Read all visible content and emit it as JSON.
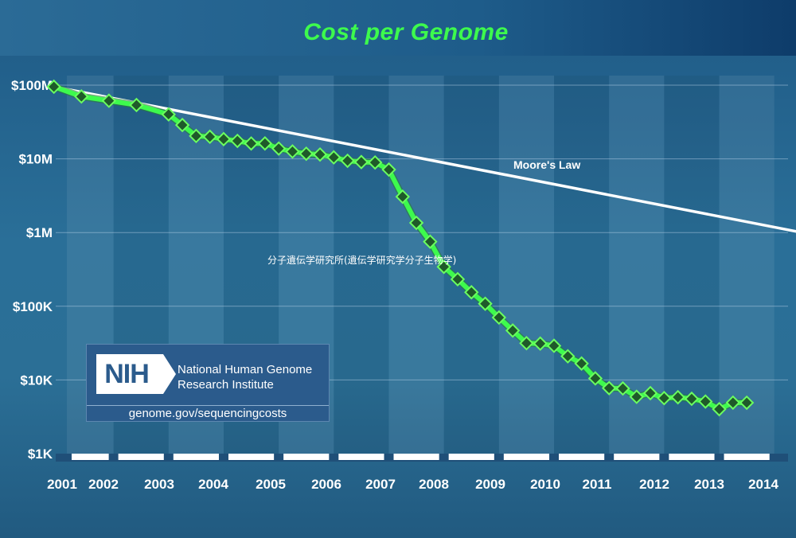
{
  "chart_data": {
    "type": "line",
    "title": "Cost per Genome",
    "xlabel": "",
    "ylabel": "",
    "x_ticks": [
      "2001",
      "2002",
      "2003",
      "2004",
      "2005",
      "2006",
      "2007",
      "2008",
      "2009",
      "2010",
      "2011",
      "2012",
      "2013",
      "2014"
    ],
    "y_ticks": [
      "$100M",
      "$10M",
      "$1M",
      "$100K",
      "$10K",
      "$1K"
    ],
    "y_scale": "log",
    "ylim": [
      1000,
      100000000
    ],
    "xlim": [
      2001.7,
      2015.0
    ],
    "grid": true,
    "annotations": [
      {
        "text": "Moore's Law"
      },
      {
        "text": "分子遺伝学研究所(遺伝学研究学分子生物学)"
      }
    ],
    "series": [
      {
        "name": "",
        "color": "#3dfa4d",
        "points": [
          [
            "2001-09",
            95263072
          ],
          [
            "2002-03",
            70175437
          ],
          [
            "2002-09",
            61448422
          ],
          [
            "2003-03",
            53751684
          ],
          [
            "2003-10",
            40157554
          ],
          [
            "2004-01",
            28780376
          ],
          [
            "2004-04",
            20442576
          ],
          [
            "2004-07",
            19934346
          ],
          [
            "2004-10",
            18519312
          ],
          [
            "2005-01",
            17534391
          ],
          [
            "2005-04",
            16159000
          ],
          [
            "2005-07",
            16180224
          ],
          [
            "2005-10",
            13801124
          ],
          [
            "2006-01",
            12585659
          ],
          [
            "2006-04",
            11732535
          ],
          [
            "2006-07",
            11455315
          ],
          [
            "2006-10",
            10474556
          ],
          [
            "2007-01",
            9408739
          ],
          [
            "2007-04",
            9047003
          ],
          [
            "2007-07",
            8927342
          ],
          [
            "2007-10",
            7147571
          ],
          [
            "2008-01",
            3063820
          ],
          [
            "2008-04",
            1352982
          ],
          [
            "2008-07",
            752080
          ],
          [
            "2008-10",
            342502
          ],
          [
            "2009-01",
            232735
          ],
          [
            "2009-04",
            154714
          ],
          [
            "2009-07",
            108065
          ],
          [
            "2009-10",
            70333
          ],
          [
            "2010-01",
            46774
          ],
          [
            "2010-04",
            31512
          ],
          [
            "2010-07",
            31125
          ],
          [
            "2010-10",
            29092
          ],
          [
            "2011-01",
            20963
          ],
          [
            "2011-04",
            16712
          ],
          [
            "2011-07",
            10497
          ],
          [
            "2011-10",
            7743
          ],
          [
            "2012-01",
            7666
          ],
          [
            "2012-04",
            5901
          ],
          [
            "2012-07",
            6618
          ],
          [
            "2012-10",
            5671
          ],
          [
            "2013-01",
            5826
          ],
          [
            "2013-04",
            5550
          ],
          [
            "2013-07",
            5096
          ],
          [
            "2013-10",
            4008
          ],
          [
            "2014-01",
            4920
          ],
          [
            "2014-04",
            4905
          ]
        ]
      },
      {
        "name": "Moore's Law",
        "color": "#ffffff",
        "points": [
          [
            "2001-09",
            95263072
          ],
          [
            "2015-04",
            1000000
          ]
        ]
      }
    ],
    "logo": {
      "badge": "NIH",
      "name_line1": "National Human Genome",
      "name_line2": "Research Institute",
      "url": "genome.gov/sequencingcosts"
    }
  }
}
